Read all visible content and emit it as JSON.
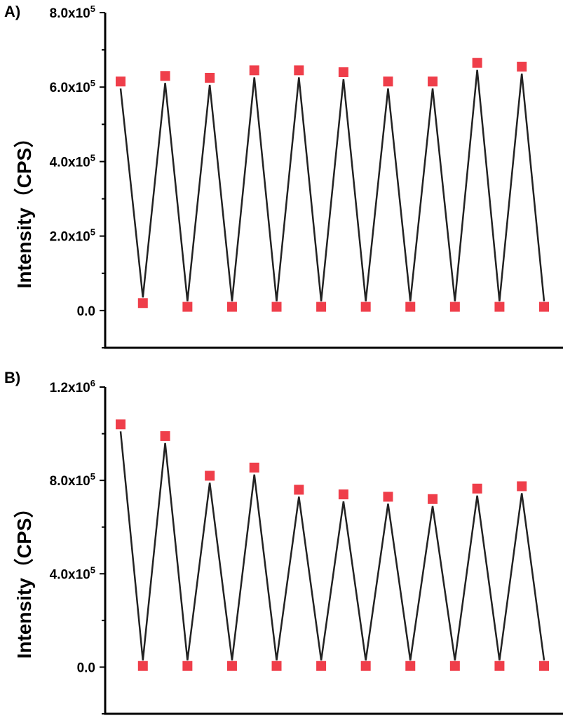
{
  "chart_data": [
    {
      "panel": "A)",
      "type": "line",
      "ylabel": "Intensity（CPS）",
      "xlabel": "",
      "ylim": [
        -100000,
        800000
      ],
      "y_ticks": [
        0,
        200000,
        400000,
        600000,
        800000
      ],
      "y_tick_labels": [
        "0.0",
        "2.0x10^5",
        "4.0x10^5",
        "6.0x10^5",
        "8.0x10^5"
      ],
      "marker_color": "#ef3e4a",
      "line_color": "#222222",
      "series": [
        {
          "values": [
            615000,
            20000,
            630000,
            10000,
            625000,
            10000,
            645000,
            10000,
            645000,
            10000,
            640000,
            10000,
            615000,
            10000,
            615000,
            10000,
            665000,
            10000,
            655000,
            10000
          ]
        }
      ]
    },
    {
      "panel": "B)",
      "type": "line",
      "ylabel": "Intensity（CPS）",
      "xlabel": "",
      "ylim": [
        -200000,
        1200000
      ],
      "y_ticks": [
        0,
        400000,
        800000,
        1200000
      ],
      "y_tick_labels": [
        "0.0",
        "4.0x10^5",
        "8.0x10^5",
        "1.2x10^6"
      ],
      "marker_color": "#ef3e4a",
      "line_color": "#222222",
      "series": [
        {
          "values": [
            1040000,
            5000,
            990000,
            5000,
            820000,
            5000,
            855000,
            5000,
            760000,
            5000,
            740000,
            5000,
            730000,
            5000,
            720000,
            5000,
            765000,
            5000,
            775000,
            5000
          ]
        }
      ]
    }
  ]
}
